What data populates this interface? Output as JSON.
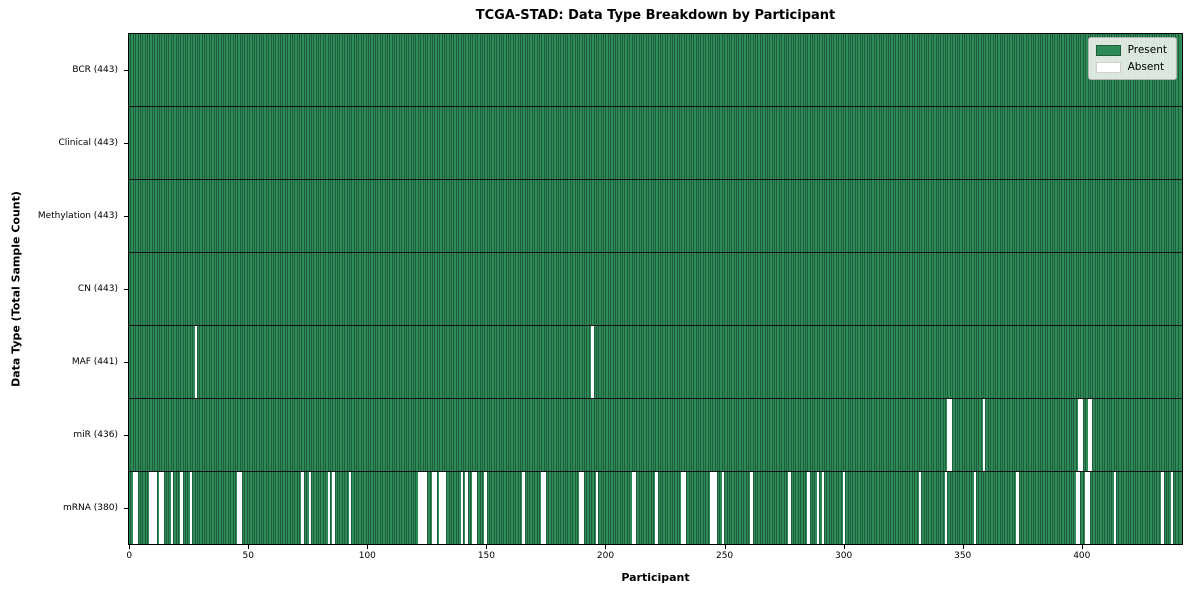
{
  "chart_data": {
    "type": "heatmap",
    "title": "TCGA-STAD: Data Type Breakdown by Participant",
    "xlabel": "Participant",
    "ylabel": "Data Type (Total Sample Count)",
    "n_participants": 443,
    "x_ticks": [
      0,
      50,
      100,
      150,
      200,
      250,
      300,
      350,
      400
    ],
    "xlim": [
      -0.5,
      442.5
    ],
    "grid": false,
    "legend_position": "upper right",
    "legend": [
      {
        "label": "Present",
        "color": "#2e8b57"
      },
      {
        "label": "Absent",
        "color": "#ffffff"
      }
    ],
    "colors": {
      "present": "#2e8b57",
      "edge": "#1e5e3c",
      "absent": "#ffffff"
    },
    "rows": [
      {
        "label": "BCR (443)",
        "present_count": 443,
        "absent_participants": []
      },
      {
        "label": "Clinical (443)",
        "present_count": 443,
        "absent_participants": []
      },
      {
        "label": "Methylation (443)",
        "present_count": 443,
        "absent_participants": []
      },
      {
        "label": "CN (443)",
        "present_count": 443,
        "absent_participants": []
      },
      {
        "label": "MAF (441)",
        "present_count": 441,
        "absent_participants": [
          28,
          195
        ]
      },
      {
        "label": "miR (436)",
        "present_count": 436,
        "absent_participants": [
          345,
          346,
          360,
          400,
          401,
          404,
          405
        ]
      },
      {
        "label": "mRNA (380)",
        "present_count": 380,
        "absent_participants": [
          2,
          3,
          9,
          10,
          11,
          13,
          14,
          18,
          22,
          26,
          46,
          47,
          73,
          76,
          84,
          86,
          93,
          122,
          123,
          124,
          125,
          128,
          129,
          131,
          132,
          133,
          140,
          142,
          145,
          146,
          150,
          166,
          174,
          175,
          190,
          191,
          197,
          212,
          213,
          222,
          233,
          234,
          245,
          246,
          247,
          250,
          262,
          278,
          286,
          290,
          292,
          301,
          333,
          344,
          356,
          374,
          399,
          400,
          403,
          404,
          415,
          435,
          439
        ]
      }
    ]
  }
}
